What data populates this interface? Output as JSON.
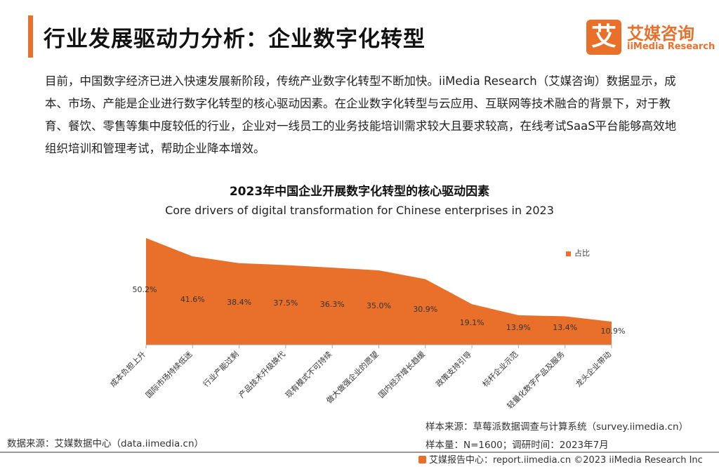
{
  "header": {
    "title": "行业发展驱动力分析：企业数字化转型",
    "logo_mark": "艾",
    "logo_cn": "艾媒咨询",
    "logo_en": "iiMedia Research"
  },
  "intro_text": "目前，中国数字经济已进入快速发展新阶段，传统产业数字化转型不断加快。iiMedia Research（艾媒咨询）数据显示，成本、市场、产能是企业进行数字化转型的核心驱动因素。在企业数字化转型与云应用、互联网等技术融合的背景下，对于教育、餐饮、零售等集中度较低的行业，企业对一线员工的业务技能培训需求较大且要求较高，在线考试SaaS平台能够高效地组织培训和管理考试，帮助企业降本增效。",
  "chart_data": {
    "type": "area",
    "title": "2023年中国企业开展数字化转型的核心驱动因素",
    "subtitle": "Core drivers of digital transformation for Chinese enterprises in 2023",
    "categories": [
      "成本负担上升",
      "国际市场持续低迷",
      "行业产能过剩",
      "产品技术升级换代",
      "现有模式不可持续",
      "做大做强企业的愿望",
      "国内经济增长趋缓",
      "政策支持引导",
      "标杆企业示范",
      "轻量化数字产品及服务",
      "龙头企业带动"
    ],
    "series": [
      {
        "name": "占比",
        "values": [
          50.2,
          41.6,
          38.4,
          37.5,
          36.3,
          35.0,
          30.9,
          19.1,
          13.9,
          13.4,
          10.9
        ],
        "labels": [
          "50.2%",
          "41.6%",
          "38.4%",
          "37.5%",
          "36.3%",
          "35.0%",
          "30.9%",
          "19.1%",
          "13.9%",
          "13.4%",
          "10.9%"
        ]
      }
    ],
    "ylim": [
      0,
      60
    ],
    "grid": false,
    "legend": "right",
    "color": "#e8702a"
  },
  "sources": {
    "data_source": "数据来源：艾媒数据中心（data.iimedia.cn）",
    "sample_source": "样本来源：草莓派数据调查与计算系统（survey.iimedia.cn）",
    "sample_size": "样本量：N=1600；调研时间：2023年7月"
  },
  "footer": {
    "text": "艾媒报告中心：report.iimedia.cn ©2023 iiMedia Research Inc"
  }
}
